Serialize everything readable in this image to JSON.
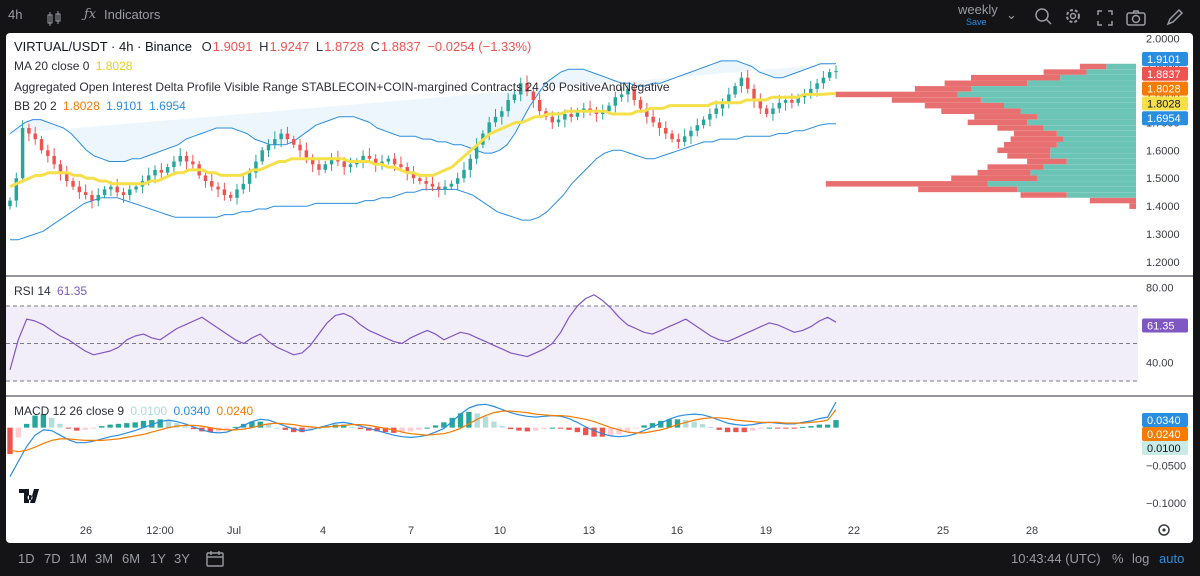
{
  "toolbar": {
    "timeframe": "4h",
    "indicators_label": "Indicators",
    "layout_name": "weekly",
    "layout_status": "Save"
  },
  "legend": {
    "symbol": "VIRTUAL/USDT · 4h · Binance",
    "o_label": "O",
    "o_val": "1.9091",
    "h_label": "H",
    "h_val": "1.9247",
    "l_label": "L",
    "l_val": "1.8728",
    "c_label": "C",
    "c_val": "1.8837",
    "change": "−0.0254 (−1.33%)",
    "ma_label": "MA 20 close 0",
    "ma_val": "1.8028",
    "oi_label": "Aggregated Open Interest Delta Profile Visible Range STABLECOIN+COIN-margined Contracts 24 30 PositiveAndNegative",
    "bb_label": "BB 20 2",
    "bb_mid": "1.8028",
    "bb_up": "1.9101",
    "bb_low": "1.6954",
    "rsi_label": "RSI 14",
    "rsi_val": "61.35",
    "macd_label": "MACD 12 26 close 9",
    "macd_hist": "0.0100",
    "macd_line": "0.0340",
    "macd_signal": "0.0240"
  },
  "colors": {
    "up": "#26a69a",
    "down": "#ef5350",
    "ma": "#f5e04a",
    "bb": "#2a8ee0",
    "rsi": "#7e57c2",
    "macd": "#2a8ee0",
    "signal": "#f57c00",
    "oi_pos": "#6cc4b6",
    "oi_neg": "#e86f6f"
  },
  "chart_data": [
    {
      "type": "candlestick",
      "pane": "price",
      "ylim": [
        1.15,
        2.02
      ],
      "y_ticks": [
        "2.0000",
        "1.9000",
        "1.8000",
        "1.7000",
        "1.6000",
        "1.5000",
        "1.4000",
        "1.3000",
        "1.2000"
      ],
      "y_tick_values": [
        2.0,
        1.9,
        1.8,
        1.7,
        1.6,
        1.5,
        1.4,
        1.3,
        1.2
      ],
      "x_ticks": [
        "26",
        "12:00",
        "Jul",
        "4",
        "7",
        "10",
        "13",
        "16",
        "19",
        "22",
        "25",
        "28"
      ],
      "price_badges": [
        {
          "text": "1.9101",
          "value": 1.9101,
          "color": "#2a8ee0"
        },
        {
          "text": "1.8837",
          "value": 1.8837,
          "color": "#ef5350"
        },
        {
          "text": "1.8028",
          "value": 1.8028,
          "color": "#f57c00"
        },
        {
          "text": "1.8028",
          "value": 1.8028,
          "color": "#f5e04a"
        },
        {
          "text": "1.6954",
          "value": 1.6954,
          "color": "#2a8ee0"
        }
      ],
      "close": [
        1.42,
        1.5,
        1.68,
        1.66,
        1.64,
        1.6,
        1.58,
        1.55,
        1.52,
        1.49,
        1.47,
        1.45,
        1.44,
        1.42,
        1.44,
        1.46,
        1.47,
        1.45,
        1.44,
        1.46,
        1.47,
        1.49,
        1.51,
        1.53,
        1.52,
        1.54,
        1.56,
        1.58,
        1.56,
        1.55,
        1.51,
        1.49,
        1.47,
        1.46,
        1.44,
        1.43,
        1.46,
        1.48,
        1.52,
        1.56,
        1.6,
        1.62,
        1.64,
        1.66,
        1.64,
        1.62,
        1.6,
        1.57,
        1.55,
        1.53,
        1.55,
        1.57,
        1.56,
        1.54,
        1.55,
        1.56,
        1.58,
        1.57,
        1.55,
        1.56,
        1.57,
        1.55,
        1.54,
        1.52,
        1.5,
        1.49,
        1.48,
        1.47,
        1.46,
        1.47,
        1.48,
        1.5,
        1.53,
        1.57,
        1.62,
        1.66,
        1.7,
        1.72,
        1.74,
        1.78,
        1.8,
        1.84,
        1.81,
        1.78,
        1.74,
        1.72,
        1.7,
        1.71,
        1.73,
        1.72,
        1.74,
        1.75,
        1.74,
        1.73,
        1.74,
        1.76,
        1.79,
        1.8,
        1.82,
        1.78,
        1.75,
        1.72,
        1.7,
        1.68,
        1.66,
        1.64,
        1.63,
        1.65,
        1.67,
        1.69,
        1.71,
        1.73,
        1.75,
        1.77,
        1.8,
        1.83,
        1.86,
        1.82,
        1.78,
        1.75,
        1.73,
        1.75,
        1.77,
        1.78,
        1.77,
        1.79,
        1.8,
        1.82,
        1.84,
        1.86,
        1.88,
        1.8837
      ],
      "ma20": [
        1.47,
        1.48,
        1.49,
        1.5,
        1.51,
        1.51,
        1.52,
        1.52,
        1.52,
        1.52,
        1.51,
        1.51,
        1.5,
        1.5,
        1.49,
        1.49,
        1.48,
        1.48,
        1.48,
        1.48,
        1.48,
        1.48,
        1.49,
        1.49,
        1.5,
        1.51,
        1.52,
        1.52,
        1.53,
        1.53,
        1.53,
        1.52,
        1.52,
        1.51,
        1.51,
        1.51,
        1.51,
        1.52,
        1.53,
        1.53,
        1.54,
        1.55,
        1.56,
        1.56,
        1.57,
        1.57,
        1.57,
        1.57,
        1.57,
        1.57,
        1.57,
        1.57,
        1.57,
        1.56,
        1.56,
        1.56,
        1.56,
        1.55,
        1.55,
        1.54,
        1.54,
        1.53,
        1.52,
        1.52,
        1.51,
        1.51,
        1.51,
        1.52,
        1.53,
        1.54,
        1.56,
        1.58,
        1.6,
        1.62,
        1.64,
        1.66,
        1.67,
        1.68,
        1.69,
        1.7,
        1.7,
        1.71,
        1.72,
        1.72,
        1.73,
        1.73,
        1.73,
        1.74,
        1.74,
        1.74,
        1.74,
        1.74,
        1.74,
        1.74,
        1.73,
        1.73,
        1.73,
        1.73,
        1.74,
        1.74,
        1.75,
        1.75,
        1.75,
        1.76,
        1.76,
        1.76,
        1.76,
        1.76,
        1.76,
        1.76,
        1.77,
        1.77,
        1.77,
        1.77,
        1.77,
        1.78,
        1.78,
        1.78,
        1.78,
        1.79,
        1.79,
        1.79,
        1.79,
        1.79,
        1.8,
        1.8,
        1.8,
        1.8,
        1.8028,
        1.8028
      ],
      "bb_upper": [
        1.66,
        1.68,
        1.7,
        1.71,
        1.71,
        1.7,
        1.69,
        1.68,
        1.66,
        1.63,
        1.6,
        1.58,
        1.57,
        1.56,
        1.56,
        1.56,
        1.57,
        1.57,
        1.58,
        1.59,
        1.6,
        1.61,
        1.62,
        1.64,
        1.65,
        1.66,
        1.67,
        1.68,
        1.68,
        1.68,
        1.67,
        1.66,
        1.64,
        1.63,
        1.62,
        1.62,
        1.62,
        1.63,
        1.65,
        1.67,
        1.69,
        1.7,
        1.71,
        1.72,
        1.72,
        1.72,
        1.71,
        1.7,
        1.68,
        1.67,
        1.66,
        1.65,
        1.65,
        1.65,
        1.64,
        1.64,
        1.63,
        1.63,
        1.62,
        1.62,
        1.61,
        1.6,
        1.59,
        1.59,
        1.6,
        1.62,
        1.66,
        1.71,
        1.76,
        1.8,
        1.84,
        1.86,
        1.88,
        1.89,
        1.89,
        1.89,
        1.88,
        1.87,
        1.86,
        1.85,
        1.84,
        1.84,
        1.83,
        1.83,
        1.84,
        1.84,
        1.85,
        1.86,
        1.87,
        1.88,
        1.89,
        1.9,
        1.91,
        1.92,
        1.92,
        1.92,
        1.91,
        1.9,
        1.88,
        1.87,
        1.86,
        1.86,
        1.87,
        1.88,
        1.89,
        1.9,
        1.91,
        1.9101,
        1.9101
      ],
      "bb_lower": [
        1.28,
        1.28,
        1.29,
        1.3,
        1.31,
        1.33,
        1.35,
        1.37,
        1.39,
        1.41,
        1.42,
        1.43,
        1.43,
        1.43,
        1.42,
        1.41,
        1.4,
        1.39,
        1.38,
        1.37,
        1.36,
        1.36,
        1.36,
        1.36,
        1.36,
        1.36,
        1.37,
        1.37,
        1.38,
        1.38,
        1.39,
        1.39,
        1.4,
        1.4,
        1.4,
        1.4,
        1.4,
        1.41,
        1.41,
        1.41,
        1.41,
        1.41,
        1.41,
        1.42,
        1.42,
        1.43,
        1.43,
        1.44,
        1.45,
        1.45,
        1.46,
        1.46,
        1.46,
        1.46,
        1.46,
        1.45,
        1.44,
        1.42,
        1.4,
        1.38,
        1.37,
        1.36,
        1.35,
        1.35,
        1.36,
        1.38,
        1.41,
        1.44,
        1.48,
        1.51,
        1.54,
        1.57,
        1.59,
        1.6,
        1.6,
        1.59,
        1.58,
        1.57,
        1.57,
        1.58,
        1.59,
        1.6,
        1.61,
        1.62,
        1.63,
        1.63,
        1.64,
        1.64,
        1.64,
        1.65,
        1.65,
        1.65,
        1.65,
        1.66,
        1.66,
        1.67,
        1.67,
        1.68,
        1.69,
        1.6954,
        1.6954
      ]
    },
    {
      "type": "bar",
      "pane": "oi_profile",
      "rows": [
        {
          "price": 1.9,
          "pos": 0.09,
          "neg": 0.08
        },
        {
          "price": 1.88,
          "pos": 0.15,
          "neg": 0.13
        },
        {
          "price": 1.86,
          "pos": 0.23,
          "neg": 0.27
        },
        {
          "price": 1.84,
          "pos": 0.33,
          "neg": 0.25
        },
        {
          "price": 1.82,
          "pos": 0.5,
          "neg": 0.17
        },
        {
          "price": 1.8,
          "pos": 0.54,
          "neg": 0.37
        },
        {
          "price": 1.78,
          "pos": 0.47,
          "neg": 0.27
        },
        {
          "price": 1.76,
          "pos": 0.4,
          "neg": 0.24
        },
        {
          "price": 1.74,
          "pos": 0.35,
          "neg": 0.24
        },
        {
          "price": 1.72,
          "pos": 0.3,
          "neg": 0.19
        },
        {
          "price": 1.7,
          "pos": 0.33,
          "neg": 0.18
        },
        {
          "price": 1.68,
          "pos": 0.28,
          "neg": 0.14
        },
        {
          "price": 1.66,
          "pos": 0.24,
          "neg": 0.13
        },
        {
          "price": 1.64,
          "pos": 0.22,
          "neg": 0.16
        },
        {
          "price": 1.62,
          "pos": 0.24,
          "neg": 0.16
        },
        {
          "price": 1.6,
          "pos": 0.26,
          "neg": 0.16
        },
        {
          "price": 1.58,
          "pos": 0.26,
          "neg": 0.13
        },
        {
          "price": 1.56,
          "pos": 0.21,
          "neg": 0.12
        },
        {
          "price": 1.54,
          "pos": 0.28,
          "neg": 0.17
        },
        {
          "price": 1.52,
          "pos": 0.32,
          "neg": 0.16
        },
        {
          "price": 1.5,
          "pos": 0.3,
          "neg": 0.26
        },
        {
          "price": 1.48,
          "pos": 0.45,
          "neg": 0.49
        },
        {
          "price": 1.46,
          "pos": 0.36,
          "neg": 0.3
        },
        {
          "price": 1.44,
          "pos": 0.21,
          "neg": 0.14
        },
        {
          "price": 1.42,
          "pos": 0.0,
          "neg": 0.14
        },
        {
          "price": 1.4,
          "pos": 0.0,
          "neg": 0.02
        }
      ]
    },
    {
      "type": "line",
      "pane": "rsi",
      "ylim": [
        22,
        86
      ],
      "y_ticks": [
        "80.00",
        "40.00"
      ],
      "y_tick_values": [
        80,
        40
      ],
      "bands": [
        70,
        50,
        30
      ],
      "values": [
        36,
        52,
        63,
        62,
        60,
        57,
        54,
        52,
        49,
        46,
        44,
        45,
        46,
        48,
        52,
        54,
        55,
        53,
        52,
        55,
        58,
        60,
        62,
        64,
        61,
        58,
        55,
        52,
        50,
        53,
        55,
        51,
        48,
        46,
        44,
        45,
        49,
        55,
        61,
        65,
        66,
        64,
        60,
        57,
        55,
        53,
        51,
        50,
        53,
        55,
        57,
        55,
        52,
        54,
        56,
        55,
        53,
        51,
        49,
        47,
        45,
        44,
        43,
        45,
        47,
        50,
        56,
        64,
        70,
        74,
        76,
        73,
        69,
        64,
        60,
        58,
        56,
        55,
        57,
        59,
        61,
        63,
        60,
        57,
        54,
        52,
        51,
        53,
        55,
        57,
        59,
        61,
        60,
        58,
        56,
        57,
        59,
        62,
        64,
        61.35
      ]
    },
    {
      "type": "line",
      "pane": "macd",
      "ylim": [
        -0.12,
        0.042
      ],
      "y_ticks": [
        "−0.0500",
        "−0.1000"
      ],
      "y_tick_values": [
        -0.05,
        -0.1
      ],
      "macd": [
        -0.065,
        -0.045,
        -0.025,
        -0.01,
        -0.003,
        -0.004,
        -0.01,
        -0.016,
        -0.02,
        -0.02,
        -0.018,
        -0.015,
        -0.012,
        -0.01,
        -0.007,
        -0.004,
        0.0,
        0.004,
        0.008,
        0.01,
        0.008,
        0.005,
        0.001,
        -0.003,
        -0.006,
        -0.007,
        -0.006,
        -0.002,
        0.003,
        0.008,
        0.011,
        0.01,
        0.006,
        0.002,
        -0.002,
        -0.004,
        -0.003,
        0.0,
        0.003,
        0.006,
        0.007,
        0.005,
        0.002,
        -0.001,
        -0.004,
        -0.007,
        -0.01,
        -0.012,
        -0.013,
        -0.012,
        -0.01,
        -0.006,
        -0.001,
        0.008,
        0.018,
        0.026,
        0.03,
        0.031,
        0.028,
        0.024,
        0.02,
        0.017,
        0.015,
        0.014,
        0.015,
        0.016,
        0.015,
        0.012,
        0.007,
        0.001,
        -0.004,
        -0.008,
        -0.011,
        -0.012,
        -0.011,
        -0.008,
        -0.004,
        0.001,
        0.006,
        0.011,
        0.015,
        0.017,
        0.018,
        0.017,
        0.014,
        0.01,
        0.006,
        0.004,
        0.003,
        0.004,
        0.006,
        0.007,
        0.006,
        0.005,
        0.005,
        0.007,
        0.009,
        0.012,
        0.014,
        0.034
      ],
      "signal": [
        -0.03,
        -0.032,
        -0.03,
        -0.026,
        -0.021,
        -0.017,
        -0.015,
        -0.015,
        -0.016,
        -0.017,
        -0.017,
        -0.017,
        -0.016,
        -0.015,
        -0.013,
        -0.011,
        -0.009,
        -0.006,
        -0.003,
        0.0,
        0.002,
        0.003,
        0.003,
        0.002,
        0.0,
        -0.002,
        -0.003,
        -0.003,
        -0.002,
        0.0,
        0.003,
        0.005,
        0.006,
        0.005,
        0.004,
        0.002,
        0.001,
        0.0,
        0.001,
        0.002,
        0.003,
        0.004,
        0.004,
        0.003,
        0.001,
        -0.001,
        -0.003,
        -0.006,
        -0.008,
        -0.009,
        -0.01,
        -0.009,
        -0.008,
        -0.005,
        -0.001,
        0.005,
        0.011,
        0.016,
        0.02,
        0.022,
        0.022,
        0.021,
        0.02,
        0.018,
        0.017,
        0.016,
        0.016,
        0.015,
        0.013,
        0.011,
        0.008,
        0.004,
        0.0,
        -0.003,
        -0.006,
        -0.007,
        -0.007,
        -0.005,
        -0.003,
        0.0,
        0.004,
        0.007,
        0.01,
        0.012,
        0.013,
        0.013,
        0.012,
        0.01,
        0.009,
        0.008,
        0.007,
        0.007,
        0.007,
        0.006,
        0.006,
        0.006,
        0.007,
        0.008,
        0.01,
        0.024
      ],
      "histogram": [
        -0.035,
        -0.013,
        0.005,
        0.016,
        0.018,
        0.013,
        0.005,
        -0.001,
        -0.004,
        -0.003,
        -0.001,
        0.002,
        0.004,
        0.005,
        0.006,
        0.007,
        0.009,
        0.01,
        0.011,
        0.01,
        0.006,
        0.002,
        -0.002,
        -0.005,
        -0.006,
        -0.005,
        -0.003,
        0.001,
        0.005,
        0.008,
        0.008,
        0.005,
        0.0,
        -0.003,
        -0.006,
        -0.006,
        -0.004,
        0.0,
        0.002,
        0.004,
        0.004,
        0.001,
        -0.002,
        -0.004,
        -0.005,
        -0.006,
        -0.007,
        -0.006,
        -0.005,
        -0.003,
        0.0,
        0.003,
        0.007,
        0.013,
        0.019,
        0.021,
        0.019,
        0.015,
        0.008,
        0.002,
        -0.002,
        -0.004,
        -0.005,
        -0.004,
        -0.002,
        0.0,
        -0.001,
        -0.003,
        -0.006,
        -0.01,
        -0.012,
        -0.012,
        -0.011,
        -0.009,
        -0.005,
        -0.001,
        0.003,
        0.006,
        0.009,
        0.011,
        0.011,
        0.01,
        0.008,
        0.005,
        0.001,
        -0.003,
        -0.006,
        -0.006,
        -0.006,
        -0.004,
        -0.001,
        0.0,
        -0.001,
        -0.001,
        -0.001,
        0.001,
        0.002,
        0.004,
        0.004,
        0.01
      ],
      "badges": [
        {
          "text": "0.0340",
          "value": 0.034,
          "color": "#2a8ee0"
        },
        {
          "text": "0.0240",
          "value": 0.024,
          "color": "#f57c00"
        },
        {
          "text": "0.0100",
          "value": 0.01,
          "color": "#c8ebe6"
        }
      ]
    }
  ],
  "bottom": {
    "ranges": [
      "1D",
      "7D",
      "1M",
      "3M",
      "6M",
      "1Y",
      "3Y"
    ],
    "clock": "10:43:44 (UTC)",
    "pct": "%",
    "log": "log",
    "auto": "auto"
  }
}
